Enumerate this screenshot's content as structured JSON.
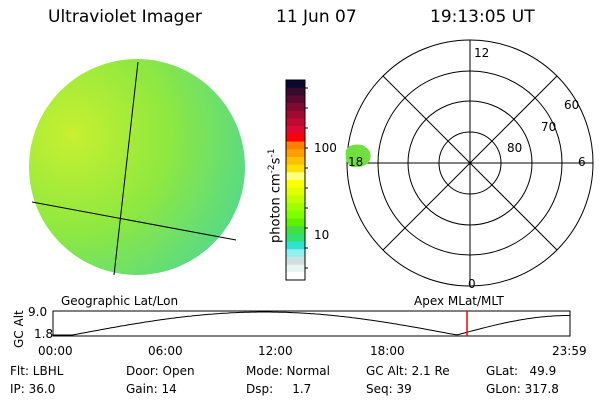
{
  "header": {
    "instrument": "Ultraviolet Imager",
    "date": "11 Jun 07",
    "time": "19:13:05 UT"
  },
  "colorbar": {
    "unit_label": "photon cm",
    "exp1": "-2",
    "s": "s",
    "exp2": "-1",
    "ticks": [
      "100",
      "10"
    ],
    "colors": [
      "#0a0a30",
      "#3a0a2c",
      "#5a0a30",
      "#800a30",
      "#a00a30",
      "#c00a30",
      "#e00a30",
      "#ff0000",
      "#ff8000",
      "#ffa000",
      "#ffc000",
      "#ffe000",
      "#ffff80",
      "#ffff00",
      "#e0ff00",
      "#c0ff00",
      "#a0ff00",
      "#80ff00",
      "#60f000",
      "#40e040",
      "#30e070",
      "#30e0d0",
      "#90f0f0",
      "#d0e0e0",
      "#e8f4f0",
      "#ffffff"
    ]
  },
  "polar": {
    "labels": {
      "top": "12",
      "bottom": "0",
      "right": "6",
      "left": "18"
    },
    "lat_labels": [
      "60",
      "70",
      "80"
    ]
  },
  "timeline": {
    "left_label": "Geographic Lat/Lon",
    "right_label": "Apex MLat/MLT",
    "ylabel": "GC Alt",
    "ymax": "9.0",
    "ymin": "1.8",
    "xticks": [
      "00:00",
      "06:00",
      "12:00",
      "18:00",
      "23:59"
    ],
    "current_hour": 19.22,
    "marker_color": "#ff0000"
  },
  "status": {
    "row1": [
      "Flt: LBHL",
      "Door: Open",
      "Mode: Normal",
      "GC Alt: 2.1 Re",
      "GLat:   49.9"
    ],
    "row2": [
      "IP: 36.0",
      "Gain: 14",
      "Dsp:     1.7",
      "Seq: 39",
      "GLon: 317.8"
    ]
  }
}
